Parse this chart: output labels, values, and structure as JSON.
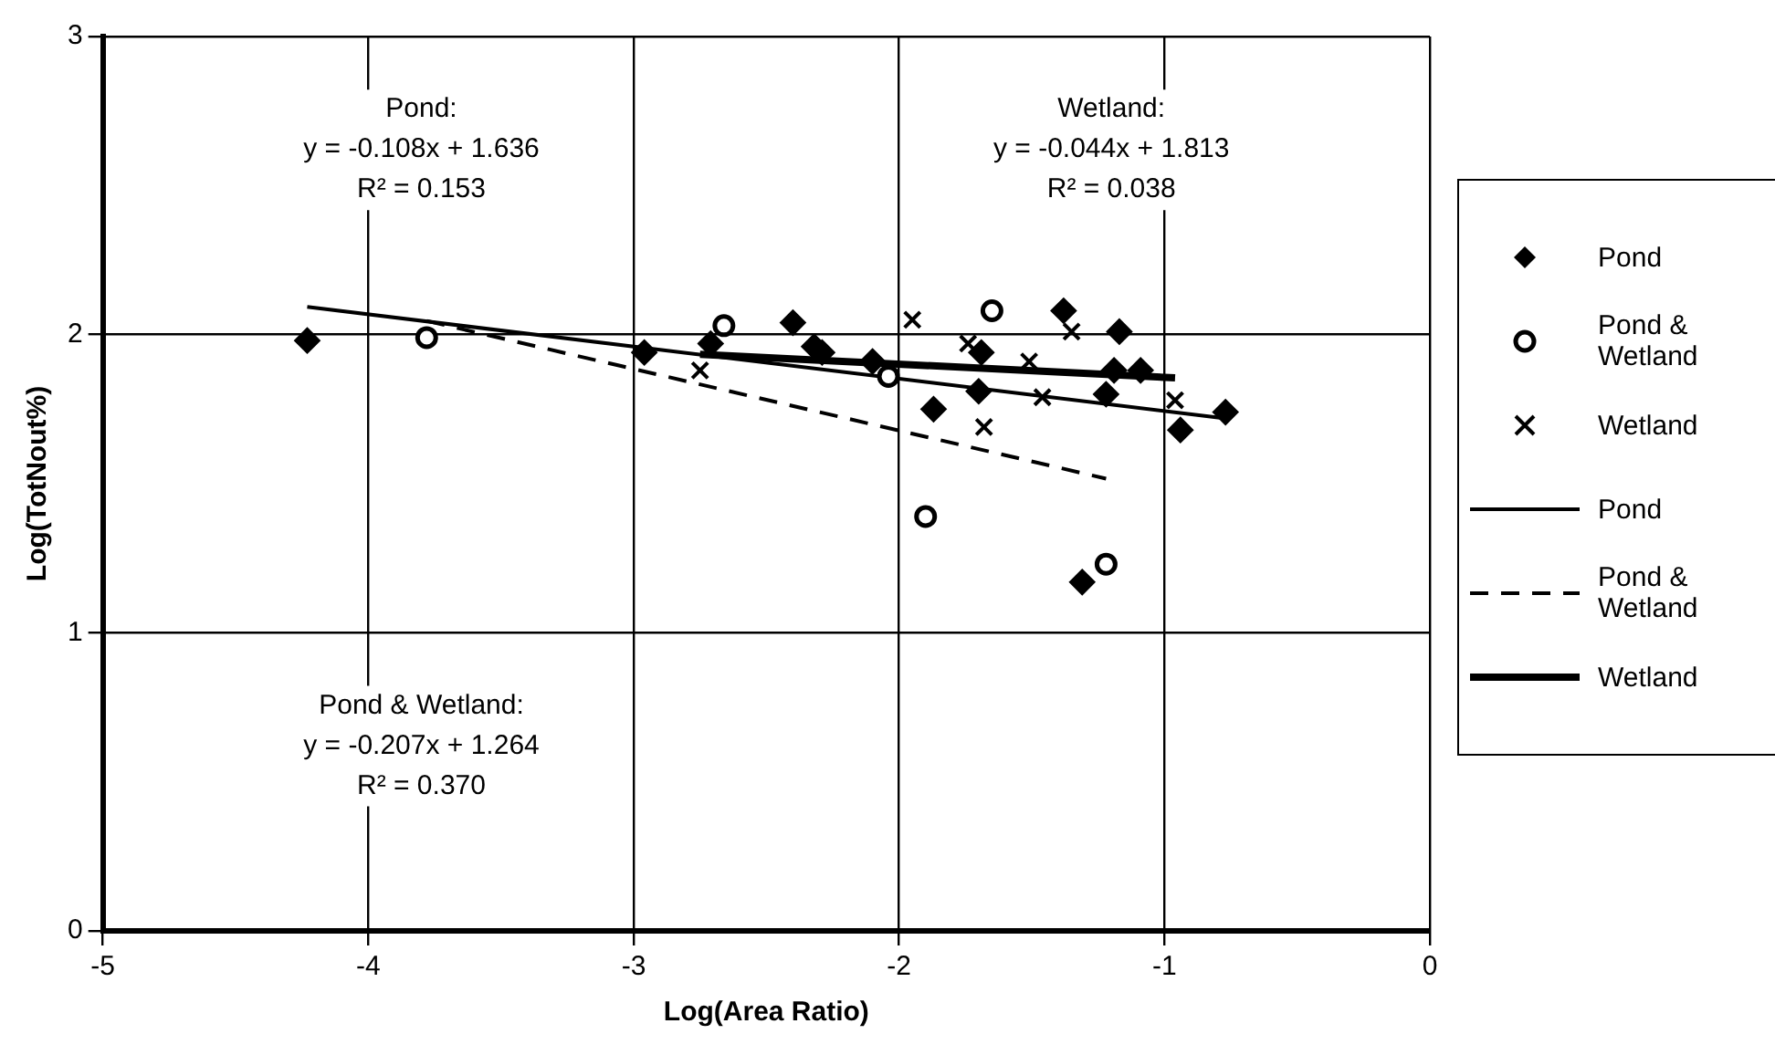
{
  "chart_data": {
    "type": "scatter",
    "xlabel": "Log(Area Ratio)",
    "ylabel": "Log(TotNout%)",
    "xlim": [
      -5,
      0
    ],
    "ylim": [
      0,
      3
    ],
    "xticks": [
      -5,
      -4,
      -3,
      -2,
      -1,
      0
    ],
    "yticks": [
      0,
      1,
      2,
      3
    ],
    "grid": true,
    "legend": "right",
    "annotations": [
      {
        "text": "Pond:\ny = -0.108x + 1.636\nR² = 0.153"
      },
      {
        "text": "Wetland:\ny = -0.044x + 1.813\nR² = 0.038"
      },
      {
        "text": "Pond & Wetland:\ny = -0.207x + 1.264\nR² = 0.370"
      }
    ],
    "series": [
      {
        "name": "Pond",
        "marker": "diamond",
        "color": "#000000",
        "x": [
          -4.23,
          -2.96,
          -2.71,
          -2.4,
          -2.32,
          -2.29,
          -2.1,
          -1.87,
          -1.7,
          -1.69,
          -1.38,
          -1.31,
          -1.22,
          -1.19,
          -1.17,
          -1.09,
          -0.94,
          -0.77
        ],
        "values": [
          1.98,
          1.94,
          1.97,
          2.04,
          1.96,
          1.94,
          1.91,
          1.75,
          1.81,
          1.94,
          2.08,
          1.17,
          1.8,
          1.88,
          2.01,
          1.88,
          1.68,
          1.74
        ]
      },
      {
        "name": "Pond & Wetland",
        "marker": "circle",
        "color": "#000000",
        "x": [
          -3.78,
          -2.66,
          -2.04,
          -1.9,
          -1.65,
          -1.22
        ],
        "values": [
          1.99,
          2.03,
          1.86,
          1.39,
          2.08,
          1.23
        ]
      },
      {
        "name": "Wetland",
        "marker": "cross",
        "color": "#000000",
        "x": [
          -2.75,
          -1.95,
          -1.74,
          -1.68,
          -1.51,
          -1.46,
          -1.35,
          -0.96
        ],
        "values": [
          1.88,
          2.05,
          1.97,
          1.69,
          1.91,
          1.79,
          2.01,
          1.78
        ]
      },
      {
        "name": "Pond",
        "type": "line",
        "line_style": "solid",
        "color": "#000000",
        "x": [
          -4.23,
          -0.77
        ],
        "values": [
          2.093,
          1.719
        ]
      },
      {
        "name": "Pond & Wetland",
        "type": "line",
        "line_style": "dashed",
        "color": "#000000",
        "x": [
          -3.78,
          -1.22
        ],
        "values": [
          2.046,
          1.517
        ]
      },
      {
        "name": "Wetland",
        "type": "line",
        "line_style": "solid",
        "color": "#000000",
        "x": [
          -2.75,
          -0.96
        ],
        "values": [
          1.934,
          1.855
        ]
      }
    ]
  }
}
